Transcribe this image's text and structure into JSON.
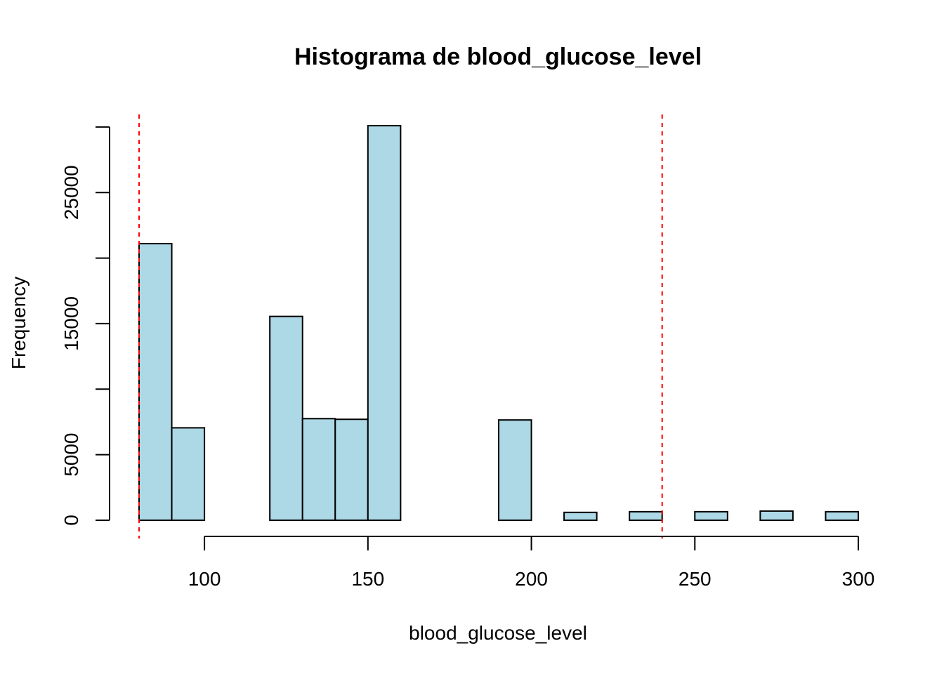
{
  "chart_data": {
    "type": "bar",
    "subtype": "histogram",
    "title": "Histograma de blood_glucose_level",
    "xlabel": "blood_glucose_level",
    "ylabel": "Frequency",
    "bins": [
      {
        "start": 80,
        "end": 90,
        "count": 21100
      },
      {
        "start": 90,
        "end": 100,
        "count": 7050
      },
      {
        "start": 100,
        "end": 110,
        "count": 0
      },
      {
        "start": 110,
        "end": 120,
        "count": 0
      },
      {
        "start": 120,
        "end": 130,
        "count": 15550
      },
      {
        "start": 130,
        "end": 140,
        "count": 7750
      },
      {
        "start": 140,
        "end": 150,
        "count": 7700
      },
      {
        "start": 150,
        "end": 160,
        "count": 30100
      },
      {
        "start": 160,
        "end": 170,
        "count": 0
      },
      {
        "start": 170,
        "end": 180,
        "count": 0
      },
      {
        "start": 180,
        "end": 190,
        "count": 0
      },
      {
        "start": 190,
        "end": 200,
        "count": 7650
      },
      {
        "start": 200,
        "end": 210,
        "count": 0
      },
      {
        "start": 210,
        "end": 220,
        "count": 600
      },
      {
        "start": 220,
        "end": 230,
        "count": 0
      },
      {
        "start": 230,
        "end": 240,
        "count": 650
      },
      {
        "start": 240,
        "end": 250,
        "count": 0
      },
      {
        "start": 250,
        "end": 260,
        "count": 650
      },
      {
        "start": 260,
        "end": 270,
        "count": 0
      },
      {
        "start": 270,
        "end": 280,
        "count": 700
      },
      {
        "start": 280,
        "end": 290,
        "count": 0
      },
      {
        "start": 290,
        "end": 300,
        "count": 650
      }
    ],
    "x_ticks": [
      "100",
      "150",
      "200",
      "250",
      "300"
    ],
    "y_ticks": [
      "0",
      "5000",
      "15000",
      "25000"
    ],
    "y_minor_ticks": [
      10000,
      20000,
      30000
    ],
    "xlim": [
      80,
      300
    ],
    "ylim": [
      0,
      30100
    ],
    "reference_lines": [
      80,
      240
    ],
    "bar_fill": "#add8e6",
    "bar_stroke": "#000000",
    "reference_line_color": "#ff0000",
    "grid": false,
    "legend": "none"
  }
}
